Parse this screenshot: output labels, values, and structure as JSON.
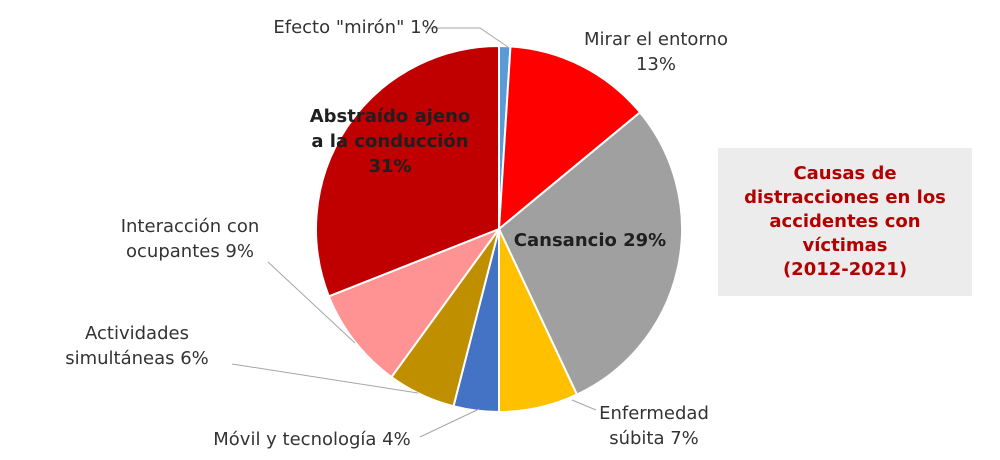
{
  "chart_data": {
    "type": "pie",
    "title_lines": [
      "Causas de",
      "distracciones en los",
      "accidentes con",
      "víctimas",
      "(2012-2021)"
    ],
    "title_color": "#b30000",
    "slices": [
      {
        "category": "Efecto \"mirón\"",
        "value": 1,
        "color": "#5b9bd5",
        "label_lines": [
          "Efecto \"mirón\" 1%"
        ]
      },
      {
        "category": "Mirar el entorno",
        "value": 13,
        "color": "#ff0000",
        "label_lines": [
          "Mirar el entorno",
          "13%"
        ]
      },
      {
        "category": "Cansancio",
        "value": 29,
        "color": "#a0a0a0",
        "label_lines": [
          "Cansancio 29%"
        ]
      },
      {
        "category": "Enfermedad súbita",
        "value": 7,
        "color": "#ffc000",
        "label_lines": [
          "Enfermedad",
          "súbita 7%"
        ]
      },
      {
        "category": "Móvil y tecnología",
        "value": 4,
        "color": "#4472c4",
        "label_lines": [
          "Móvil y tecnología 4%"
        ]
      },
      {
        "category": "Actividades simultáneas",
        "value": 6,
        "color": "#bf8f00",
        "label_lines": [
          "Actividades",
          "simultáneas 6%"
        ]
      },
      {
        "category": "Interacción con ocupantes",
        "value": 9,
        "color": "#ff9393",
        "label_lines": [
          "Interacción con",
          "ocupantes 9%"
        ]
      },
      {
        "category": "Abstraído ajeno a la conducción",
        "value": 31,
        "color": "#c00000",
        "label_lines": [
          "Abstraído ajeno",
          "a la conducción",
          "31%"
        ]
      }
    ]
  }
}
